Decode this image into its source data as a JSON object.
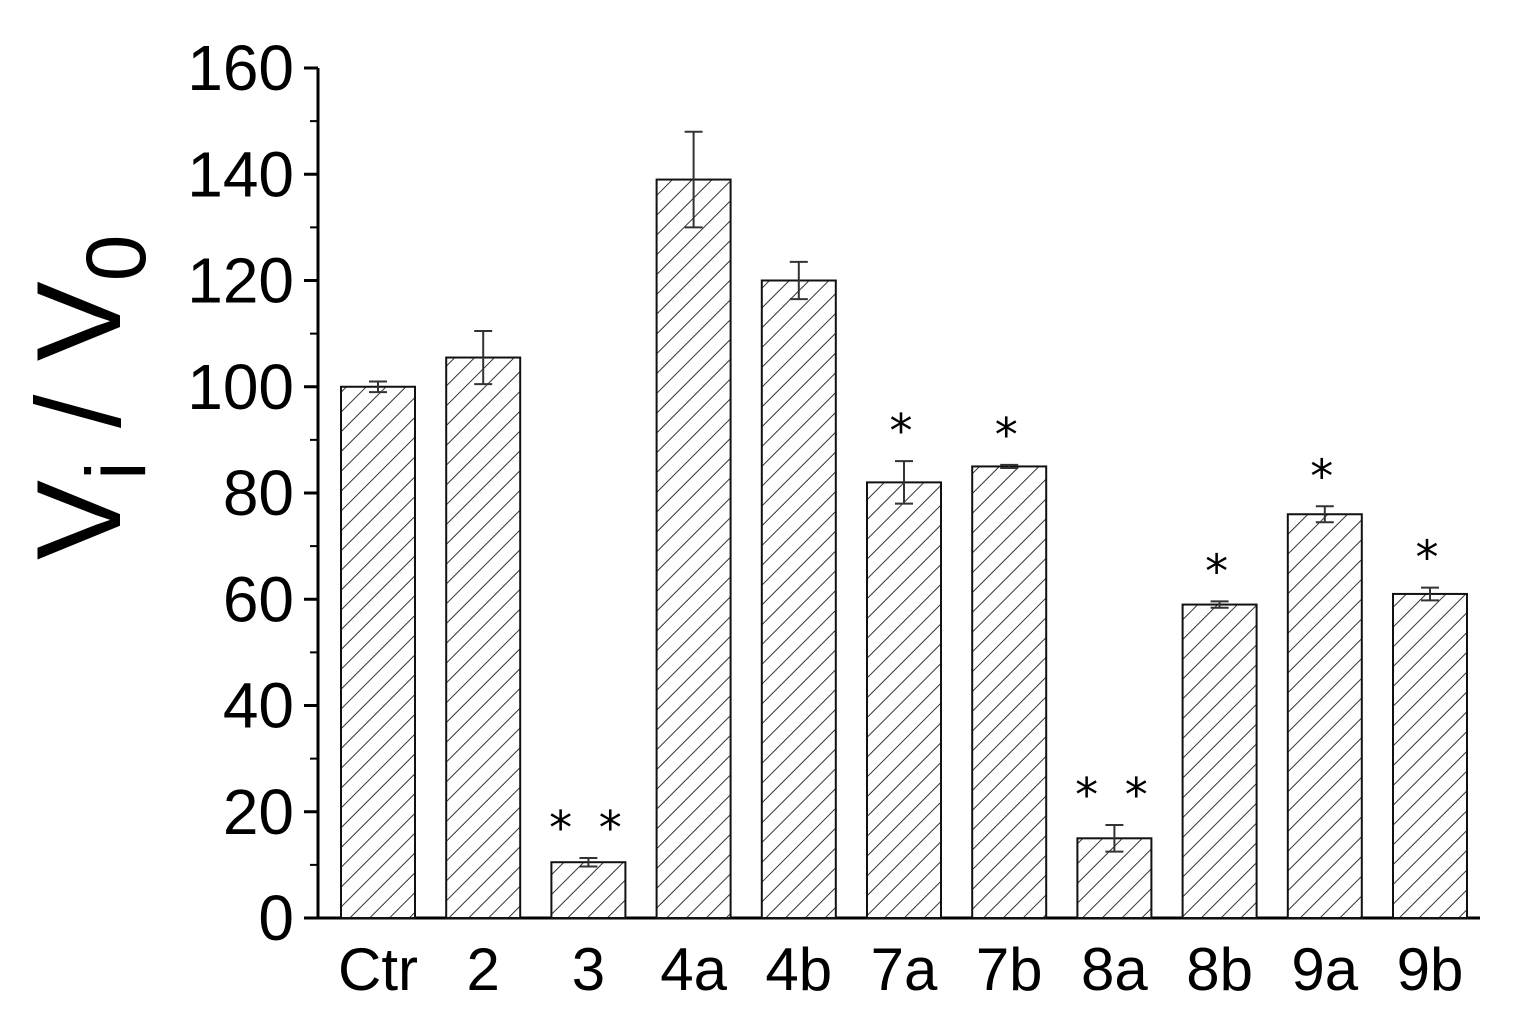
{
  "chart_data": {
    "type": "bar",
    "title": "",
    "xlabel": "",
    "ylabel": {
      "main": "V",
      "sub": "i",
      "sep": " / ",
      "main2": "V",
      "sub2": "0"
    },
    "ylim": [
      0,
      160
    ],
    "yticks": [
      0,
      20,
      40,
      60,
      80,
      100,
      120,
      140,
      160
    ],
    "grid": false,
    "fill_pattern": "diagonal-hatch",
    "bar_color": "#000000",
    "categories": [
      "Ctr",
      "2",
      "3",
      "4a",
      "4b",
      "7a",
      "7b",
      "8a",
      "8b",
      "9a",
      "9b"
    ],
    "values": [
      100,
      105.5,
      10.5,
      139,
      120,
      82,
      85,
      15,
      59,
      76,
      61
    ],
    "errors": [
      1,
      5,
      0.8,
      9,
      3.5,
      4,
      0.3,
      2.5,
      0.6,
      1.5,
      1.2
    ],
    "significance": [
      "",
      "",
      "**",
      "",
      "",
      "*",
      "*",
      "**",
      "*",
      "*",
      "*"
    ]
  }
}
